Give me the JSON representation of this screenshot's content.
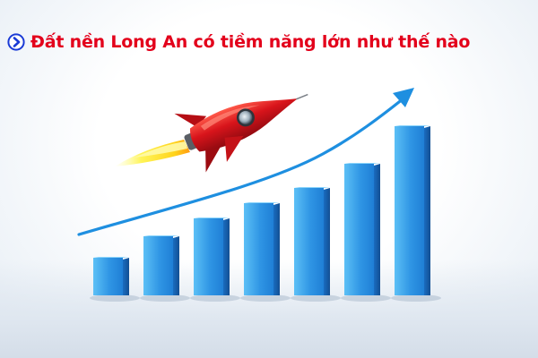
{
  "headline": {
    "text": "Đất nền Long An có tiềm năng lớn như thế nào",
    "icon": "circle-arrow-right-icon"
  },
  "illustration": {
    "icons": [
      "rocket-icon",
      "trend-arrow-icon"
    ],
    "bar_levels": [
      0.17,
      0.27,
      0.35,
      0.42,
      0.49,
      0.6,
      0.77
    ],
    "colors": {
      "headline_text": "#e3001b",
      "headline_icon": "#1a3bd6",
      "bar_front_light": "#4fb3f2",
      "bar_front_dark": "#1f7fd6",
      "bar_side": "#155fae",
      "arrow": "#1e8fe0",
      "rocket_body": "#d8141b",
      "rocket_window": "#cfd8e0",
      "flame": "#ffe830"
    }
  }
}
